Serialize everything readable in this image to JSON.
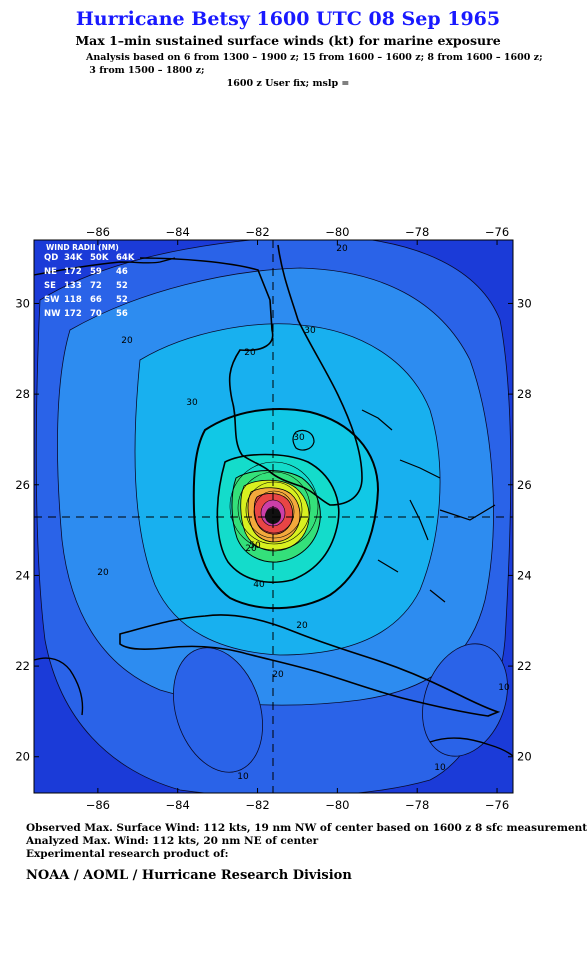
{
  "header": {
    "title": "Hurricane Betsy 1600 UTC 08 Sep 1965",
    "subtitle": "Max 1–min sustained surface winds (kt) for marine exposure",
    "analysis_line1": "Analysis based on  6 from 1300 – 1900 z;  15 from 1600 – 1600 z;  8 from 1600 – 1600 z;",
    "analysis_line2": " 3 from 1500 – 1800 z;",
    "fix_line": "1600 z User fix; mslp ="
  },
  "map": {
    "lon_ticks_top": [
      "−86",
      "−84",
      "−82",
      "−80",
      "−78",
      "−76"
    ],
    "lon_ticks_bottom": [
      "−86",
      "−84",
      "−82",
      "−80",
      "−78",
      "−76"
    ],
    "lat_ticks_left": [
      "30",
      "28",
      "26",
      "24",
      "22",
      "20"
    ],
    "lat_ticks_right": [
      "30",
      "28",
      "26",
      "24",
      "22",
      "20"
    ],
    "lon_range": [
      -87.6,
      -75.6
    ],
    "lat_range": [
      19.2,
      31.4
    ],
    "center": {
      "lon": -81.6,
      "lat": 25.2
    },
    "contour_labels": [
      "20",
      "20",
      "30",
      "30",
      "20",
      "20",
      "30",
      "20",
      "40",
      "20",
      "10",
      "10",
      "50",
      "20",
      "10"
    ],
    "colors": {
      "deep_blue": "#1b3bd8",
      "blue": "#2a63e8",
      "mid_blue": "#2d8cf0",
      "light_blue": "#18b0ef",
      "cyan": "#11c8e6",
      "aqua": "#14dccb",
      "green": "#34e07a",
      "yellow": "#d8f020",
      "orange": "#f3a93c",
      "red": "#e84545",
      "magenta": "#cc3fa8",
      "core": "#111111"
    }
  },
  "wind_radii": {
    "title": "WIND RADII (NM)",
    "header": [
      "QD",
      "34K",
      "50K",
      "64K"
    ],
    "rows": [
      [
        "NE",
        "172",
        "59",
        "46"
      ],
      [
        "SE",
        "133",
        "72",
        "52"
      ],
      [
        "SW",
        "118",
        "66",
        "52"
      ],
      [
        "NW",
        "172",
        "70",
        "56"
      ]
    ]
  },
  "footer": {
    "observed": "Observed Max. Surface Wind: 112 kts, 19 nm NW of center based on 1600 z 8 sfc measurement",
    "analyzed": "Analyzed Max. Wind: 112 kts, 20 nm NE of center",
    "experimental": "Experimental research product of:",
    "org": "NOAA / AOML / Hurricane Research Division"
  }
}
